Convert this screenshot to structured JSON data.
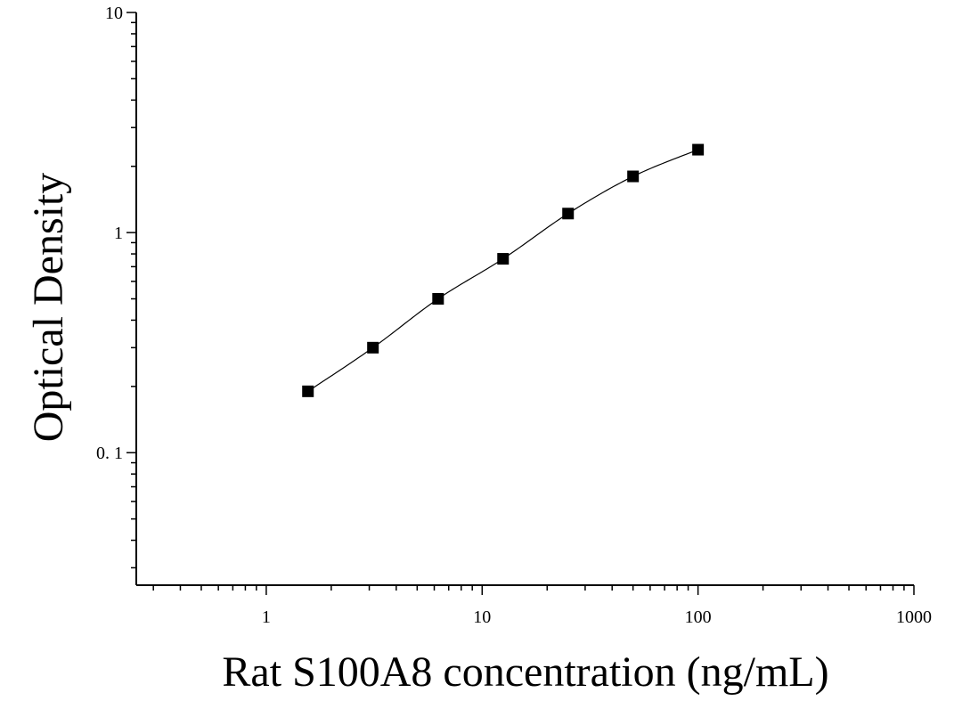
{
  "chart_data": {
    "type": "scatter",
    "title": "",
    "xlabel": "Rat S100A8 concentration (ng/mL)",
    "ylabel": "Optical Density",
    "x_scale": "log",
    "y_scale": "log",
    "xlim": [
      0.25,
      1000
    ],
    "ylim": [
      0.025,
      10
    ],
    "x_ticks": [
      1,
      10,
      100,
      1000
    ],
    "x_tick_labels": [
      "1",
      "10",
      "100",
      "1000"
    ],
    "y_ticks": [
      0.1,
      1,
      10
    ],
    "y_tick_labels": [
      "0. 1",
      "1",
      "10"
    ],
    "grid": false,
    "legend": "none",
    "series": [
      {
        "marker": "square",
        "color": "#000000",
        "fit_line": true,
        "points": [
          {
            "x": 1.56,
            "y": 0.19
          },
          {
            "x": 3.12,
            "y": 0.3
          },
          {
            "x": 6.25,
            "y": 0.5
          },
          {
            "x": 12.5,
            "y": 0.76
          },
          {
            "x": 25,
            "y": 1.22
          },
          {
            "x": 50,
            "y": 1.8
          },
          {
            "x": 100,
            "y": 2.38
          }
        ]
      }
    ]
  }
}
